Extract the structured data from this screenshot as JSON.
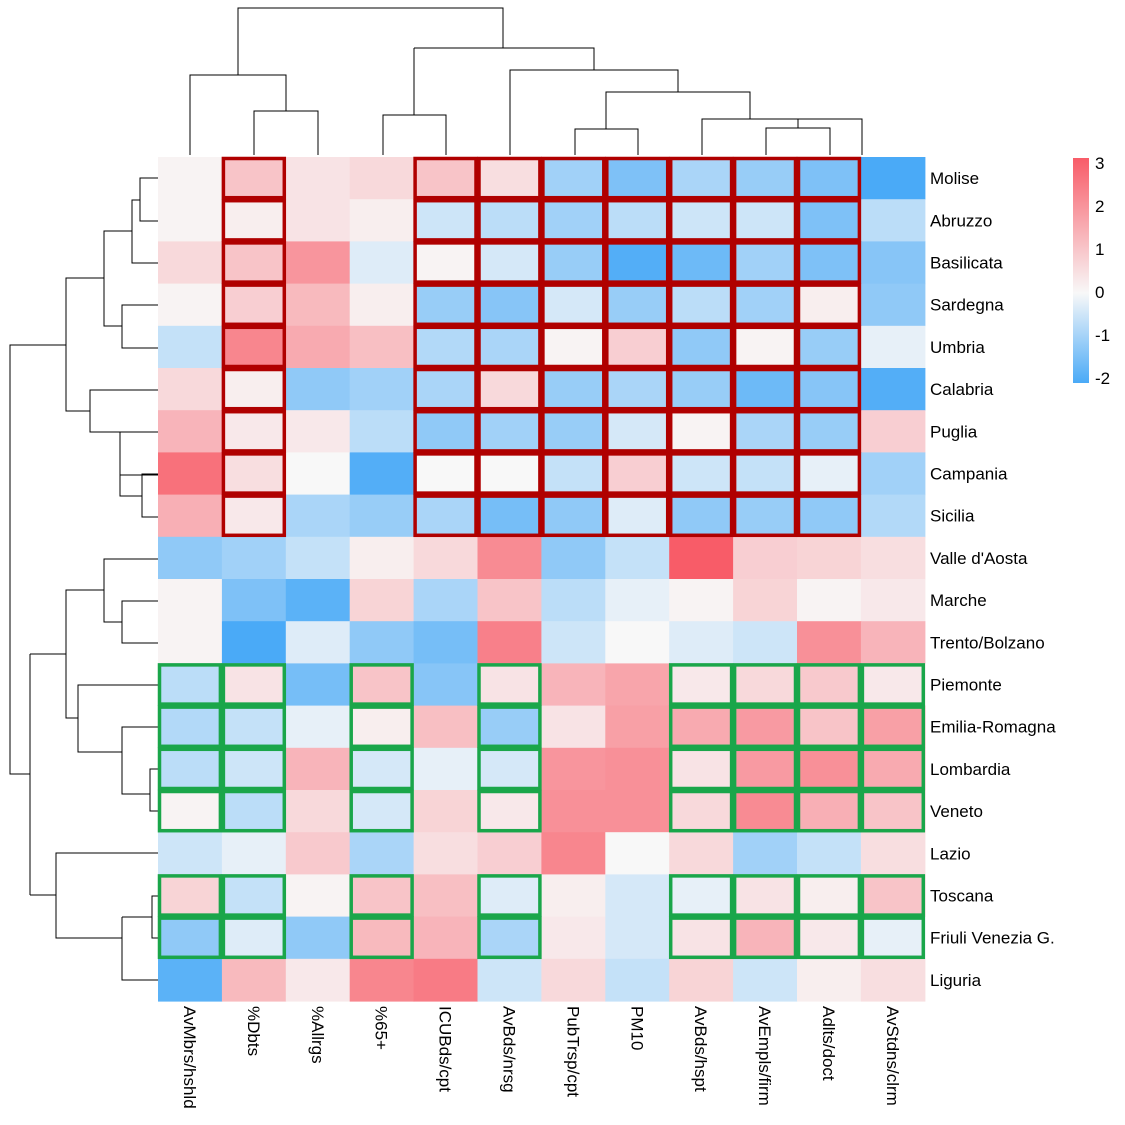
{
  "chart_data": {
    "type": "heatmap",
    "rows": [
      "Molise",
      "Abruzzo",
      "Basilicata",
      "Sardegna",
      "Umbria",
      "Calabria",
      "Puglia",
      "Campania",
      "Sicilia",
      "Valle d'Aosta",
      "Marche",
      "Trento/Bolzano",
      "Piemonte",
      "Emilia-Romagna",
      "Lombardia",
      "Veneto",
      "Lazio",
      "Toscana",
      "Friuli Venezia G.",
      "Liguria"
    ],
    "columns": [
      "AvMbrs/hshld",
      "%Dbts",
      "%Allrgs",
      "%65+",
      "ICUBds/cpt",
      "AvBds/nrsg",
      "PubTrsp/cpt",
      "PM10",
      "AvBds/hspt",
      "AvEmpls/firm",
      "Adlts/doct",
      "AvStdns/clrm"
    ],
    "values": [
      [
        0.1,
        1.0,
        0.4,
        0.6,
        1.0,
        0.5,
        -1.0,
        -1.4,
        -0.9,
        -1.1,
        -1.4,
        -2.0
      ],
      [
        0.1,
        0.2,
        0.4,
        0.2,
        -0.5,
        -0.7,
        -1.0,
        -0.7,
        -0.5,
        -0.5,
        -1.4,
        -0.7
      ],
      [
        0.6,
        1.0,
        1.9,
        -0.3,
        0.1,
        -0.4,
        -1.1,
        -1.9,
        -1.6,
        -1.0,
        -1.4,
        -1.3
      ],
      [
        0.1,
        0.8,
        1.2,
        0.2,
        -1.1,
        -1.3,
        -0.4,
        -1.1,
        -0.7,
        -1.0,
        0.2,
        -1.2
      ],
      [
        -0.6,
        2.2,
        1.5,
        1.1,
        -0.8,
        -0.9,
        0.1,
        0.8,
        -1.2,
        0.1,
        -1.1,
        -0.2
      ],
      [
        0.6,
        0.2,
        -1.2,
        -1.0,
        -0.9,
        0.6,
        -1.1,
        -0.9,
        -1.1,
        -1.6,
        -1.3,
        -1.9
      ],
      [
        1.3,
        0.3,
        0.3,
        -0.7,
        -1.2,
        -1.0,
        -1.1,
        -0.4,
        0.1,
        -0.9,
        -1.1,
        0.8
      ],
      [
        2.6,
        0.5,
        0.0,
        -1.9,
        0.0,
        0.0,
        -0.6,
        0.8,
        -0.5,
        -0.6,
        -0.2,
        -1.0
      ],
      [
        1.4,
        0.3,
        -0.9,
        -1.1,
        -0.9,
        -1.5,
        -1.2,
        -0.3,
        -1.2,
        -1.1,
        -1.2,
        -0.8
      ],
      [
        -1.2,
        -1.0,
        -0.6,
        0.2,
        0.6,
        2.1,
        -1.2,
        -0.6,
        3.0,
        0.8,
        0.7,
        0.5
      ],
      [
        0.1,
        -1.4,
        -1.8,
        0.7,
        -0.9,
        1.0,
        -0.7,
        -0.2,
        0.1,
        0.7,
        0.1,
        0.3
      ],
      [
        0.1,
        -2.0,
        -0.3,
        -1.2,
        -1.5,
        2.3,
        -0.5,
        0.0,
        -0.3,
        -0.5,
        2.0,
        1.3
      ],
      [
        -0.7,
        0.4,
        -1.5,
        1.0,
        -1.3,
        0.4,
        1.3,
        1.6,
        0.3,
        0.6,
        0.9,
        0.3
      ],
      [
        -0.8,
        -0.6,
        -0.2,
        0.2,
        1.1,
        -1.1,
        0.4,
        1.7,
        1.5,
        1.8,
        1.0,
        1.7
      ],
      [
        -0.7,
        -0.5,
        1.3,
        -0.4,
        -0.2,
        -0.4,
        1.9,
        2.0,
        0.4,
        1.8,
        2.0,
        1.5
      ],
      [
        0.1,
        -0.7,
        0.6,
        -0.4,
        0.7,
        0.3,
        2.0,
        2.0,
        0.6,
        2.1,
        1.4,
        1.0
      ],
      [
        -0.5,
        -0.2,
        0.9,
        -0.9,
        0.5,
        0.8,
        2.2,
        0.0,
        0.6,
        -1.0,
        -0.6,
        0.5
      ],
      [
        0.7,
        -0.6,
        0.1,
        1.0,
        1.1,
        -0.3,
        0.2,
        -0.4,
        -0.2,
        0.4,
        0.2,
        1.0
      ],
      [
        -1.2,
        -0.3,
        -1.2,
        1.2,
        1.3,
        -0.9,
        0.3,
        -0.4,
        0.4,
        1.3,
        0.3,
        -0.2
      ],
      [
        -1.8,
        1.2,
        0.3,
        2.2,
        2.4,
        -0.5,
        0.6,
        -0.6,
        0.7,
        -0.5,
        0.2,
        0.5
      ]
    ],
    "color_scale": {
      "min": -2,
      "mid": 0,
      "max": 3,
      "low_color": "#4aaaf7",
      "mid_color": "#f8f8f8",
      "high_color": "#f85c68"
    },
    "legend": {
      "ticks": [
        "3",
        "2",
        "1",
        "0",
        "-1",
        "-2"
      ],
      "tick_values": [
        3,
        2,
        1,
        0,
        -1,
        -2
      ],
      "placement": "right"
    },
    "highlight_red": {
      "color": "#b00000",
      "rows": [
        0,
        1,
        2,
        3,
        4,
        5,
        6,
        7,
        8
      ],
      "columns": [
        1,
        4,
        5,
        6,
        7,
        8,
        9,
        10
      ]
    },
    "highlight_green": {
      "color": "#1aa64a",
      "rows": [
        12,
        13,
        14,
        15,
        17,
        18
      ],
      "columns": [
        0,
        1,
        3,
        5,
        8,
        9,
        10,
        11
      ]
    }
  }
}
